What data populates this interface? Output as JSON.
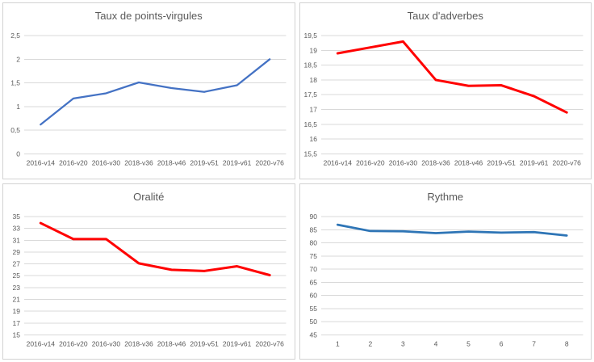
{
  "page": {
    "background_color": "#ffffff",
    "panel_border_color": "#d2d2d2",
    "gridline_color": "#d9d9d9",
    "text_color": "#595959"
  },
  "chart_data": [
    {
      "type": "line",
      "title": "Taux de points-virgules",
      "line_color": "#4472C4",
      "categories": [
        "2016-v14",
        "2016-v20",
        "2016-v30",
        "2018-v36",
        "2018-v46",
        "2019-v51",
        "2019-v61",
        "2020-v76"
      ],
      "values": [
        0.62,
        1.17,
        1.28,
        1.51,
        1.39,
        1.31,
        1.45,
        2.0
      ],
      "ylim": [
        0,
        2.5
      ],
      "ystep": 0.5,
      "y_tick_labels": [
        "2,5",
        "2",
        "1,5",
        "1",
        "0,5",
        "0"
      ],
      "xlabel": "",
      "ylabel": "",
      "grid": true,
      "legend": "none"
    },
    {
      "type": "line",
      "title": "Taux d'adverbes",
      "line_color": "#FF0000",
      "categories": [
        "2016-v14",
        "2016-v20",
        "2016-v30",
        "2018-v36",
        "2018-v46",
        "2019-v51",
        "2019-v61",
        "2020-v76"
      ],
      "values": [
        18.9,
        19.1,
        19.3,
        18.0,
        17.8,
        17.82,
        17.45,
        16.9
      ],
      "ylim": [
        15.5,
        19.5
      ],
      "ystep": 0.5,
      "y_tick_labels": [
        "19,5",
        "19",
        "18,5",
        "18",
        "17,5",
        "17",
        "16,5",
        "16",
        "15,5"
      ],
      "xlabel": "",
      "ylabel": "",
      "grid": true,
      "legend": "none"
    },
    {
      "type": "line",
      "title": "Oralité",
      "line_color": "#FF0000",
      "categories": [
        "2016-v14",
        "2016-v20",
        "2016-v30",
        "2018-v36",
        "2018-v46",
        "2019-v51",
        "2019-v61",
        "2020-v76"
      ],
      "values": [
        33.9,
        31.2,
        31.2,
        27.1,
        26.0,
        25.8,
        26.6,
        25.1
      ],
      "ylim": [
        15,
        35
      ],
      "ystep": 2,
      "y_tick_labels": [
        "35",
        "33",
        "31",
        "29",
        "27",
        "25",
        "23",
        "21",
        "19",
        "17",
        "15"
      ],
      "xlabel": "",
      "ylabel": "",
      "grid": true,
      "legend": "none"
    },
    {
      "type": "line",
      "title": "Rythme",
      "line_color": "#2E75B6",
      "categories": [
        "1",
        "2",
        "3",
        "4",
        "5",
        "6",
        "7",
        "8"
      ],
      "values": [
        86.9,
        84.5,
        84.4,
        83.7,
        84.3,
        83.9,
        84.1,
        82.8
      ],
      "ylim": [
        45,
        90
      ],
      "ystep": 5,
      "y_tick_labels": [
        "90",
        "85",
        "80",
        "75",
        "70",
        "65",
        "60",
        "55",
        "50",
        "45"
      ],
      "xlabel": "",
      "ylabel": "",
      "grid": true,
      "legend": "none"
    }
  ]
}
